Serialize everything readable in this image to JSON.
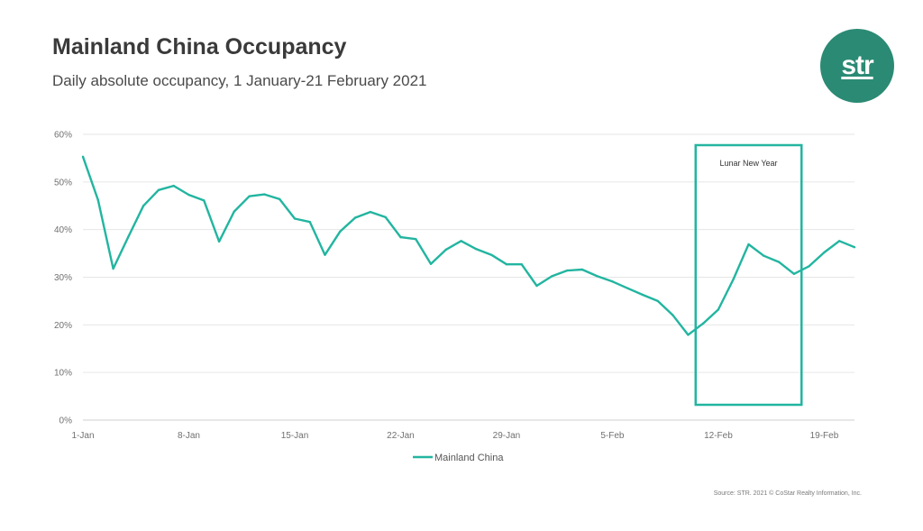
{
  "header": {
    "title": "Mainland China Occupancy",
    "subtitle": "Daily absolute occupancy, 1 January-21 February 2021"
  },
  "logo": {
    "text": "str",
    "color": "#2b8a73"
  },
  "source": "Source: STR. 2021 © CoStar Realty Information, Inc.",
  "colors": {
    "series": "#22b5a0",
    "grid": "#e6e6e6",
    "axis": "#cfcfcf"
  },
  "chart_data": {
    "type": "line",
    "ylim": [
      0,
      60
    ],
    "yticks": [
      "0%",
      "10%",
      "20%",
      "30%",
      "40%",
      "50%",
      "60%"
    ],
    "ytick_values": [
      0,
      10,
      20,
      30,
      40,
      50,
      60
    ],
    "xlim_days": [
      1,
      52
    ],
    "xticks": [
      {
        "label": "1-Jan",
        "day": 1
      },
      {
        "label": "8-Jan",
        "day": 8
      },
      {
        "label": "15-Jan",
        "day": 15
      },
      {
        "label": "22-Jan",
        "day": 22
      },
      {
        "label": "29-Jan",
        "day": 29
      },
      {
        "label": "5-Feb",
        "day": 36
      },
      {
        "label": "12-Feb",
        "day": 43
      },
      {
        "label": "19-Feb",
        "day": 50
      }
    ],
    "grid": true,
    "legend_position": "bottom-center",
    "series": [
      {
        "name": "Mainland China",
        "values": [
          55.3,
          46.2,
          31.8,
          38.5,
          45.0,
          48.3,
          49.2,
          47.3,
          46.1,
          37.5,
          43.8,
          47.0,
          47.4,
          46.4,
          42.3,
          41.6,
          34.7,
          39.6,
          42.5,
          43.7,
          42.6,
          38.4,
          38.0,
          32.8,
          35.8,
          37.6,
          35.9,
          34.7,
          32.7,
          32.7,
          28.2,
          30.2,
          31.4,
          31.6,
          30.2,
          29.1,
          27.7,
          26.3,
          25.0,
          22.0,
          17.9,
          20.3,
          23.2,
          29.6,
          36.9,
          34.5,
          33.2,
          30.7,
          32.3,
          35.2,
          37.6,
          36.3
        ]
      }
    ],
    "annotation": {
      "label": "Lunar New Year",
      "day_start": 41.5,
      "day_end": 48.5
    }
  }
}
